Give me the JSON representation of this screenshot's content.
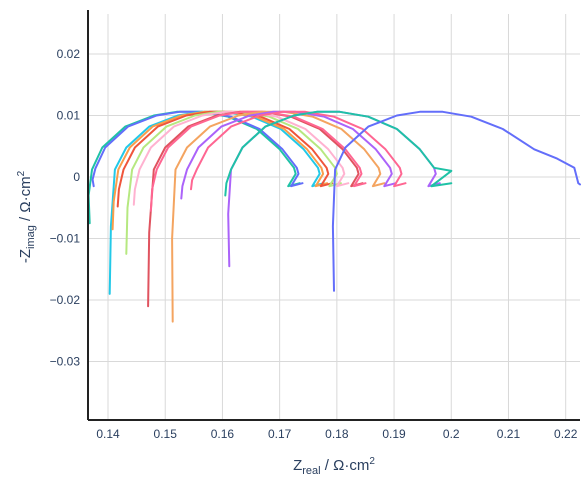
{
  "chart_data": {
    "type": "line",
    "xlabel": {
      "main": "Z",
      "sub": "real",
      "unit": " / Ω·cm",
      "sup": "2"
    },
    "ylabel": {
      "main": "-Z",
      "sub": "imag",
      "unit": " / Ω·cm",
      "sup": "2"
    },
    "xlim": [
      0.1365,
      0.2225
    ],
    "ylim": [
      -0.0395,
      0.0265
    ],
    "x_ticks": [
      0.14,
      0.15,
      0.16,
      0.17,
      0.18,
      0.19,
      0.2,
      0.21,
      0.22
    ],
    "x_tick_labels": [
      "0.14",
      "0.15",
      "0.16",
      "0.17",
      "0.18",
      "0.19",
      "0.2",
      "0.21",
      "0.22"
    ],
    "y_ticks": [
      0.02,
      0.01,
      0,
      -0.01,
      -0.02,
      -0.03
    ],
    "y_tick_labels": [
      "0.02",
      "0.01",
      "0",
      "−0.01",
      "−0.02",
      "−0.03"
    ],
    "grid": true,
    "legend": "none",
    "series": [
      {
        "color": "#1fc2a6",
        "x": [
          0.1368,
          0.1366,
          0.1372,
          0.139,
          0.143,
          0.148,
          0.152,
          0.156,
          0.161,
          0.166,
          0.17,
          0.1725,
          0.1728,
          0.1715,
          0.1735
        ],
        "y": [
          -0.0075,
          -0.003,
          0.0012,
          0.0048,
          0.0082,
          0.01,
          0.0106,
          0.0106,
          0.0098,
          0.0078,
          0.0045,
          0.0015,
          0.0005,
          -0.0015,
          -0.001
        ]
      },
      {
        "color": "#636efa",
        "x": [
          0.1375,
          0.1373,
          0.1378,
          0.1395,
          0.1435,
          0.1485,
          0.1525,
          0.1565,
          0.1615,
          0.1665,
          0.1705,
          0.173,
          0.1733,
          0.172,
          0.174
        ],
        "y": [
          -0.0015,
          -0.0004,
          0.0014,
          0.0048,
          0.0082,
          0.01,
          0.0106,
          0.0106,
          0.0098,
          0.0078,
          0.0045,
          0.0015,
          0.0005,
          -0.0015,
          -0.001
        ]
      },
      {
        "color": "#22c9e8",
        "x": [
          0.1403,
          0.1405,
          0.1412,
          0.1432,
          0.1472,
          0.1522,
          0.1562,
          0.1602,
          0.1652,
          0.1702,
          0.1742,
          0.1767,
          0.177,
          0.1757,
          0.1777
        ],
        "y": [
          -0.019,
          -0.008,
          0.0012,
          0.0048,
          0.0082,
          0.01,
          0.0106,
          0.0106,
          0.0098,
          0.0078,
          0.0045,
          0.0015,
          0.0005,
          -0.0015,
          -0.001
        ]
      },
      {
        "color": "#fa9d4a",
        "x": [
          0.1408,
          0.141,
          0.1418,
          0.1438,
          0.1478,
          0.1528,
          0.1568,
          0.1608,
          0.1658,
          0.1708,
          0.1748,
          0.1773,
          0.1776,
          0.1763,
          0.1783
        ],
        "y": [
          -0.0085,
          -0.004,
          0.0012,
          0.0048,
          0.0082,
          0.01,
          0.0106,
          0.0106,
          0.0098,
          0.0078,
          0.0045,
          0.0015,
          0.0005,
          -0.0015,
          -0.001
        ]
      },
      {
        "color": "#ef553b",
        "x": [
          0.1417,
          0.1419,
          0.1427,
          0.1447,
          0.1487,
          0.1537,
          0.1577,
          0.1617,
          0.1667,
          0.1717,
          0.1757,
          0.1782,
          0.1785,
          0.1772,
          0.1792
        ],
        "y": [
          -0.0048,
          -0.002,
          0.0012,
          0.0048,
          0.0082,
          0.01,
          0.0106,
          0.0106,
          0.0098,
          0.0078,
          0.0045,
          0.0015,
          0.0005,
          -0.0015,
          -0.001
        ]
      },
      {
        "color": "#b6e880",
        "x": [
          0.1432,
          0.1434,
          0.1442,
          0.1462,
          0.1502,
          0.1552,
          0.1592,
          0.1632,
          0.1682,
          0.1732,
          0.1772,
          0.1797,
          0.18,
          0.1787,
          0.1807
        ],
        "y": [
          -0.0125,
          -0.005,
          0.0012,
          0.0048,
          0.0082,
          0.01,
          0.0106,
          0.0106,
          0.0098,
          0.0078,
          0.0045,
          0.0015,
          0.0005,
          -0.0015,
          -0.001
        ]
      },
      {
        "color": "#ffb2d0",
        "x": [
          0.1445,
          0.1447,
          0.1455,
          0.1475,
          0.1515,
          0.1565,
          0.1605,
          0.1645,
          0.1695,
          0.1745,
          0.1785,
          0.181,
          0.1813,
          0.18,
          0.182
        ],
        "y": [
          -0.0045,
          -0.002,
          0.0012,
          0.0048,
          0.0082,
          0.01,
          0.0106,
          0.0106,
          0.0098,
          0.0078,
          0.0045,
          0.0015,
          0.0005,
          -0.0015,
          -0.001
        ]
      },
      {
        "color": "#e0535f",
        "x": [
          0.147,
          0.1472,
          0.148,
          0.15,
          0.154,
          0.159,
          0.163,
          0.167,
          0.172,
          0.177,
          0.181,
          0.1835,
          0.1838,
          0.1825,
          0.1845
        ],
        "y": [
          -0.021,
          -0.009,
          0.0012,
          0.0048,
          0.0082,
          0.01,
          0.0106,
          0.0106,
          0.0098,
          0.0078,
          0.0045,
          0.0015,
          0.0005,
          -0.0015,
          -0.001
        ]
      },
      {
        "color": "#ff6692",
        "x": [
          0.1475,
          0.1477,
          0.1485,
          0.1505,
          0.1545,
          0.1595,
          0.1635,
          0.1675,
          0.1725,
          0.1775,
          0.1815,
          0.184,
          0.1843,
          0.183,
          0.185
        ],
        "y": [
          -0.0055,
          -0.002,
          0.0012,
          0.0048,
          0.0082,
          0.01,
          0.0106,
          0.0106,
          0.0098,
          0.0078,
          0.0045,
          0.0015,
          0.0005,
          -0.0015,
          -0.001
        ]
      },
      {
        "color": "#f4a460",
        "x": [
          0.1513,
          0.1512,
          0.1518,
          0.1538,
          0.1578,
          0.1628,
          0.1668,
          0.1708,
          0.1758,
          0.1808,
          0.1848,
          0.1873,
          0.1876,
          0.1863,
          0.1883
        ],
        "y": [
          -0.0235,
          -0.01,
          0.0012,
          0.0048,
          0.0082,
          0.01,
          0.0106,
          0.0106,
          0.0098,
          0.0078,
          0.0045,
          0.0015,
          0.0005,
          -0.0015,
          -0.001
        ]
      },
      {
        "color": "#ab63fa",
        "x": [
          0.1528,
          0.153,
          0.1538,
          0.1558,
          0.1598,
          0.1648,
          0.1688,
          0.1728,
          0.1778,
          0.1828,
          0.1868,
          0.1893,
          0.1896,
          0.1883,
          0.1903
        ],
        "y": [
          -0.0035,
          -0.0015,
          0.0012,
          0.0048,
          0.0082,
          0.01,
          0.0106,
          0.0106,
          0.0098,
          0.0078,
          0.0045,
          0.0015,
          0.0005,
          -0.0015,
          -0.001
        ]
      },
      {
        "color": "#ff6692",
        "x": [
          0.1545,
          0.1547,
          0.1555,
          0.1575,
          0.1615,
          0.1665,
          0.1705,
          0.1745,
          0.1795,
          0.1845,
          0.1885,
          0.191,
          0.1913,
          0.19,
          0.192
        ],
        "y": [
          -0.002,
          -0.0005,
          0.0012,
          0.0048,
          0.0082,
          0.01,
          0.0106,
          0.0106,
          0.0098,
          0.0078,
          0.0045,
          0.0015,
          0.0005,
          -0.0015,
          -0.001
        ]
      },
      {
        "color": "#ab63fa",
        "x": [
          0.1612,
          0.161,
          0.1615,
          0.1635,
          0.1675,
          0.1725,
          0.1765,
          0.1805,
          0.1855,
          0.1905,
          0.1945,
          0.197,
          0.1973,
          0.196,
          0.198
        ],
        "y": [
          -0.0145,
          -0.006,
          0.0012,
          0.0048,
          0.0082,
          0.01,
          0.0106,
          0.0106,
          0.0098,
          0.0078,
          0.0045,
          0.0015,
          0.0005,
          -0.0015,
          -0.001
        ]
      },
      {
        "color": "#1fc2a6",
        "x": [
          0.1605,
          0.1607,
          0.1615,
          0.1635,
          0.1675,
          0.1725,
          0.1765,
          0.1805,
          0.1855,
          0.1905,
          0.1945,
          0.197,
          0.2,
          0.1965,
          0.2
        ],
        "y": [
          -0.003,
          -0.001,
          0.0012,
          0.0048,
          0.0082,
          0.01,
          0.0106,
          0.0106,
          0.0098,
          0.0078,
          0.0045,
          0.0015,
          0.001,
          -0.0015,
          -0.001
        ]
      },
      {
        "color": "#636efa",
        "x": [
          0.1795,
          0.1793,
          0.1797,
          0.1815,
          0.1855,
          0.1905,
          0.1945,
          0.1985,
          0.2035,
          0.209,
          0.2145,
          0.2185,
          0.2215,
          0.2222,
          0.2225
        ],
        "y": [
          -0.0185,
          -0.008,
          0.0012,
          0.0048,
          0.0082,
          0.01,
          0.0106,
          0.0106,
          0.0098,
          0.0078,
          0.0045,
          0.003,
          0.0015,
          -0.001,
          -0.0012
        ]
      }
    ]
  }
}
